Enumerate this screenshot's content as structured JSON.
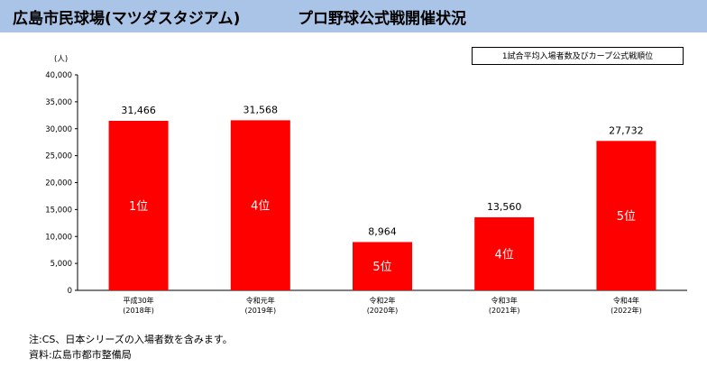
{
  "header": {
    "title": "広島市民球場(マツダスタジアム)",
    "subtitle": "プロ野球公式戦開催状況"
  },
  "legend_label": "1試合平均入場者数及びカープ公式戦順位",
  "colors": {
    "bar": "#ff0000",
    "header_bg": "#a9c4e6"
  },
  "chart_data": {
    "type": "bar",
    "ylabel": "(人)",
    "ylim": [
      0,
      40000
    ],
    "yticks": [
      "0",
      "5,000",
      "10,000",
      "15,000",
      "20,000",
      "25,000",
      "30,000",
      "35,000",
      "40,000"
    ],
    "categories": [
      {
        "line1": "平成30年",
        "line2": "(2018年)"
      },
      {
        "line1": "令和元年",
        "line2": "(2019年)"
      },
      {
        "line1": "令和2年",
        "line2": "(2020年)"
      },
      {
        "line1": "令和3年",
        "line2": "(2021年)"
      },
      {
        "line1": "令和4年",
        "line2": "(2022年)"
      }
    ],
    "values": [
      31466,
      31568,
      8964,
      13560,
      27732
    ],
    "value_labels": [
      "31,466",
      "31,568",
      "8,964",
      "13,560",
      "27,732"
    ],
    "rank_labels": [
      "1位",
      "4位",
      "5位",
      "4位",
      "5位"
    ]
  },
  "notes": {
    "note1": "注:CS、日本シリーズの入場者数を含みます。",
    "source": "資料:広島市都市整備局"
  }
}
